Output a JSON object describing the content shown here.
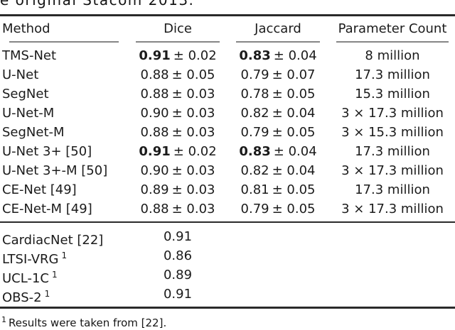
{
  "caption_fragment": "e original Stacom 2013.",
  "header": {
    "method": "Method",
    "dice": "Dice",
    "jaccard": "Jaccard",
    "params": "Parameter Count"
  },
  "rows": [
    {
      "method": "TMS-Net",
      "dice_mean": "0.91",
      "dice_pm": "± 0.02",
      "jac_mean": "0.83",
      "jac_pm": "± 0.04",
      "params": "8 million",
      "bold": true
    },
    {
      "method": "U-Net",
      "dice_mean": "0.88",
      "dice_pm": "± 0.05",
      "jac_mean": "0.79",
      "jac_pm": "± 0.07",
      "params": "17.3 million",
      "bold": false
    },
    {
      "method": "SegNet",
      "dice_mean": "0.88",
      "dice_pm": "± 0.03",
      "jac_mean": "0.78",
      "jac_pm": "± 0.05",
      "params": "15.3 million",
      "bold": false
    },
    {
      "method": "U-Net-M",
      "dice_mean": "0.90",
      "dice_pm": "± 0.03",
      "jac_mean": "0.82",
      "jac_pm": "± 0.04",
      "params": "3 × 17.3 million",
      "bold": false
    },
    {
      "method": "SegNet-M",
      "dice_mean": "0.88",
      "dice_pm": "± 0.03",
      "jac_mean": "0.79",
      "jac_pm": "± 0.05",
      "params": "3 × 15.3 million",
      "bold": false
    },
    {
      "method": "U-Net 3+ [50]",
      "dice_mean": "0.91",
      "dice_pm": "± 0.02",
      "jac_mean": "0.83",
      "jac_pm": "± 0.04",
      "params": "17.3 million",
      "bold": true
    },
    {
      "method": "U-Net 3+-M [50]",
      "dice_mean": "0.90",
      "dice_pm": "± 0.03",
      "jac_mean": "0.82",
      "jac_pm": "± 0.04",
      "params": "3 × 17.3 million",
      "bold": false
    },
    {
      "method": "CE-Net [49]",
      "dice_mean": "0.89",
      "dice_pm": "± 0.03",
      "jac_mean": "0.81",
      "jac_pm": "± 0.05",
      "params": "17.3 million",
      "bold": false
    },
    {
      "method": "CE-Net-M [49]",
      "dice_mean": "0.88",
      "dice_pm": "± 0.03",
      "jac_mean": "0.79",
      "jac_pm": "± 0.05",
      "params": "3 × 17.3 million",
      "bold": false
    }
  ],
  "comparison_rows": [
    {
      "method": "CardiacNet [22]",
      "sup": "",
      "dice": "0.91"
    },
    {
      "method": "LTSI-VRG",
      "sup": "1",
      "dice": "0.86"
    },
    {
      "method": "UCL-1C",
      "sup": "1",
      "dice": "0.89"
    },
    {
      "method": "OBS-2",
      "sup": "1",
      "dice": "0.91"
    }
  ],
  "footnote": {
    "marker": "1",
    "text": "Results were taken from [22]."
  },
  "colors": {
    "text": "#1b1b1b",
    "heavy_rule": "#2a2a2a",
    "light_rule": "#868686",
    "background": "#ffffff"
  }
}
